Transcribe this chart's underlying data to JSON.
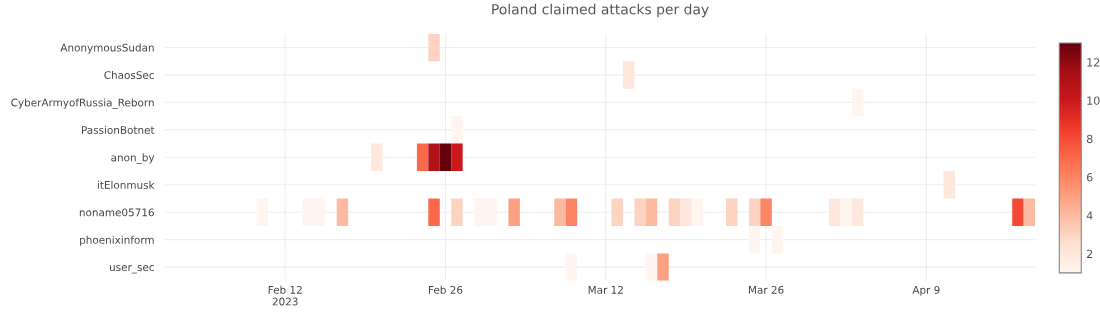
{
  "chart_data": {
    "type": "heatmap",
    "title": "Poland claimed attacks per day",
    "x": [
      "2023-02-10",
      "2023-02-11",
      "2023-02-12",
      "2023-02-13",
      "2023-02-14",
      "2023-02-15",
      "2023-02-16",
      "2023-02-17",
      "2023-02-18",
      "2023-02-19",
      "2023-02-20",
      "2023-02-21",
      "2023-02-22",
      "2023-02-23",
      "2023-02-24",
      "2023-02-25",
      "2023-02-26",
      "2023-02-27",
      "2023-02-28",
      "2023-03-01",
      "2023-03-02",
      "2023-03-03",
      "2023-03-04",
      "2023-03-05",
      "2023-03-06",
      "2023-03-07",
      "2023-03-08",
      "2023-03-09",
      "2023-03-10",
      "2023-03-11",
      "2023-03-12",
      "2023-03-13",
      "2023-03-14",
      "2023-03-15",
      "2023-03-16",
      "2023-03-17",
      "2023-03-18",
      "2023-03-19",
      "2023-03-20",
      "2023-03-21",
      "2023-03-22",
      "2023-03-23",
      "2023-03-24",
      "2023-03-25",
      "2023-03-26",
      "2023-03-27",
      "2023-03-28",
      "2023-03-29",
      "2023-03-30",
      "2023-03-31",
      "2023-04-01",
      "2023-04-02",
      "2023-04-03",
      "2023-04-04",
      "2023-04-05",
      "2023-04-06",
      "2023-04-07",
      "2023-04-08",
      "2023-04-09",
      "2023-04-10",
      "2023-04-11",
      "2023-04-12",
      "2023-04-13",
      "2023-04-14",
      "2023-04-15",
      "2023-04-16",
      "2023-04-17",
      "2023-04-18"
    ],
    "y_categories": [
      "AnonymousSudan",
      "ChaosSec",
      "CyberArmyofRussia_Reborn",
      "PassionBotnet",
      "anon_by",
      "itElonmusk",
      "noname05716",
      "phoenixinform",
      "user_sec"
    ],
    "cells": [
      [
        null,
        null,
        null,
        null,
        null,
        null,
        null,
        null,
        null,
        null,
        null,
        null,
        null,
        null,
        null,
        3,
        null,
        null,
        null,
        null,
        null,
        null,
        null,
        null,
        null,
        null,
        null,
        null,
        null,
        null,
        null,
        null,
        null,
        null,
        null,
        null,
        null,
        null,
        null,
        null,
        null,
        null,
        null,
        null,
        null,
        null,
        null,
        null,
        null,
        null,
        null,
        null,
        null,
        null,
        null,
        null,
        null,
        null,
        null,
        null,
        null,
        null,
        null,
        null,
        null,
        null,
        null,
        null
      ],
      [
        null,
        null,
        null,
        null,
        null,
        null,
        null,
        null,
        null,
        null,
        null,
        null,
        null,
        null,
        null,
        null,
        null,
        null,
        null,
        null,
        null,
        null,
        null,
        null,
        null,
        null,
        null,
        null,
        null,
        null,
        null,
        null,
        2,
        null,
        null,
        null,
        null,
        null,
        null,
        null,
        null,
        null,
        null,
        null,
        null,
        null,
        null,
        null,
        null,
        null,
        null,
        null,
        null,
        null,
        null,
        null,
        null,
        null,
        null,
        null,
        null,
        null,
        null,
        null,
        null,
        null,
        null,
        null
      ],
      [
        null,
        null,
        null,
        null,
        null,
        null,
        null,
        null,
        null,
        null,
        null,
        null,
        null,
        null,
        null,
        null,
        null,
        null,
        null,
        null,
        null,
        null,
        null,
        null,
        null,
        null,
        null,
        null,
        null,
        null,
        null,
        null,
        null,
        null,
        null,
        null,
        null,
        null,
        null,
        null,
        null,
        null,
        null,
        null,
        null,
        null,
        null,
        null,
        null,
        null,
        null,
        null,
        1,
        null,
        null,
        null,
        null,
        null,
        null,
        null,
        null,
        null,
        null,
        null,
        null,
        null,
        null,
        null
      ],
      [
        null,
        null,
        null,
        null,
        null,
        null,
        null,
        null,
        null,
        null,
        null,
        null,
        null,
        null,
        null,
        null,
        null,
        1,
        null,
        null,
        null,
        null,
        null,
        null,
        null,
        null,
        null,
        null,
        null,
        null,
        null,
        null,
        null,
        null,
        null,
        null,
        null,
        null,
        null,
        null,
        null,
        null,
        null,
        null,
        null,
        null,
        null,
        null,
        null,
        null,
        null,
        null,
        null,
        null,
        null,
        null,
        null,
        null,
        null,
        null,
        null,
        null,
        null,
        null,
        null,
        null,
        null,
        null
      ],
      [
        null,
        null,
        null,
        null,
        null,
        null,
        null,
        null,
        null,
        null,
        2,
        null,
        null,
        null,
        7,
        11,
        13,
        10,
        null,
        null,
        null,
        null,
        null,
        null,
        null,
        null,
        null,
        null,
        null,
        null,
        null,
        null,
        null,
        null,
        null,
        null,
        null,
        null,
        null,
        null,
        null,
        null,
        null,
        null,
        null,
        null,
        null,
        null,
        null,
        null,
        null,
        null,
        null,
        null,
        null,
        null,
        null,
        null,
        null,
        null,
        null,
        null,
        null,
        null,
        null,
        null,
        null,
        null
      ],
      [
        null,
        null,
        null,
        null,
        null,
        null,
        null,
        null,
        null,
        null,
        null,
        null,
        null,
        null,
        null,
        null,
        null,
        null,
        null,
        null,
        null,
        null,
        null,
        null,
        null,
        null,
        null,
        null,
        null,
        null,
        null,
        null,
        null,
        null,
        null,
        null,
        null,
        null,
        null,
        null,
        null,
        null,
        null,
        null,
        null,
        null,
        null,
        null,
        null,
        null,
        null,
        null,
        null,
        null,
        null,
        null,
        null,
        null,
        null,
        null,
        2,
        null,
        null,
        null,
        null,
        null,
        null,
        null
      ],
      [
        1,
        null,
        null,
        null,
        1,
        1,
        null,
        4,
        null,
        null,
        null,
        null,
        null,
        null,
        null,
        7,
        null,
        3,
        null,
        1,
        1,
        null,
        5,
        null,
        null,
        null,
        4,
        6,
        null,
        null,
        null,
        3,
        null,
        3,
        4,
        null,
        3,
        2,
        1,
        null,
        null,
        3,
        null,
        3,
        6,
        null,
        null,
        null,
        null,
        null,
        2,
        1,
        2,
        null,
        null,
        null,
        null,
        null,
        null,
        null,
        null,
        null,
        null,
        null,
        null,
        null,
        8,
        4
      ],
      [
        null,
        null,
        null,
        null,
        null,
        null,
        null,
        null,
        null,
        null,
        null,
        null,
        null,
        null,
        null,
        null,
        null,
        null,
        null,
        null,
        null,
        null,
        null,
        null,
        null,
        null,
        null,
        null,
        null,
        null,
        null,
        null,
        null,
        null,
        null,
        null,
        null,
        null,
        null,
        null,
        null,
        null,
        null,
        1,
        null,
        1,
        null,
        null,
        null,
        null,
        null,
        null,
        null,
        null,
        null,
        null,
        null,
        null,
        null,
        null,
        null,
        null,
        null,
        null,
        null,
        null,
        null,
        null
      ],
      [
        null,
        null,
        null,
        null,
        null,
        null,
        null,
        null,
        null,
        null,
        null,
        null,
        null,
        null,
        null,
        null,
        null,
        null,
        null,
        null,
        null,
        null,
        null,
        null,
        null,
        null,
        null,
        1,
        null,
        null,
        null,
        null,
        null,
        null,
        1,
        5,
        null,
        null,
        null,
        null,
        null,
        null,
        null,
        null,
        null,
        null,
        null,
        null,
        null,
        null,
        null,
        null,
        null,
        null,
        null,
        null,
        null,
        null,
        null,
        null,
        null,
        null,
        null,
        null,
        null,
        null,
        null,
        null
      ]
    ],
    "xlim": [
      "2023-02-01T12:00",
      "2023-04-18T12:00"
    ],
    "xticks": [
      {
        "value": "2023-02-12",
        "label": "Feb 12\n2023"
      },
      {
        "value": "2023-02-26",
        "label": "Feb 26"
      },
      {
        "value": "2023-03-12",
        "label": "Mar 12"
      },
      {
        "value": "2023-03-26",
        "label": "Mar 26"
      },
      {
        "value": "2023-04-09",
        "label": "Apr 9"
      }
    ],
    "clim": [
      1,
      13
    ],
    "cticks": [
      2,
      4,
      6,
      8,
      10,
      12
    ],
    "grid": true
  }
}
